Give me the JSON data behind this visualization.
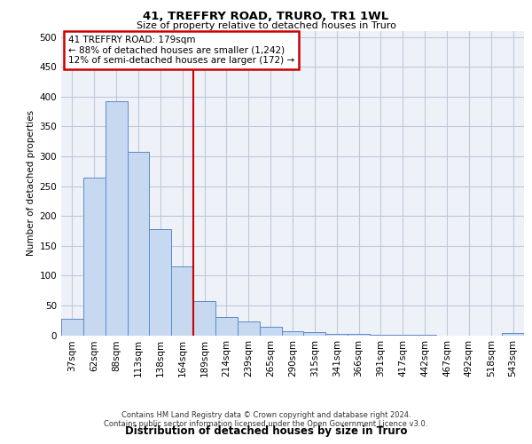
{
  "title": "41, TREFFRY ROAD, TRURO, TR1 1WL",
  "subtitle": "Size of property relative to detached houses in Truro",
  "xlabel": "Distribution of detached houses by size in Truro",
  "ylabel": "Number of detached properties",
  "footer_line1": "Contains HM Land Registry data © Crown copyright and database right 2024.",
  "footer_line2": "Contains public sector information licensed under the Open Government Licence v3.0.",
  "bar_labels": [
    "37sqm",
    "62sqm",
    "88sqm",
    "113sqm",
    "138sqm",
    "164sqm",
    "189sqm",
    "214sqm",
    "239sqm",
    "265sqm",
    "290sqm",
    "315sqm",
    "341sqm",
    "366sqm",
    "391sqm",
    "417sqm",
    "442sqm",
    "467sqm",
    "492sqm",
    "518sqm",
    "543sqm"
  ],
  "bar_values": [
    27,
    265,
    393,
    307,
    178,
    115,
    57,
    31,
    23,
    14,
    7,
    5,
    2,
    2,
    1,
    1,
    1,
    0,
    0,
    0,
    3
  ],
  "bar_color": "#c6d9f0",
  "bar_edgecolor": "#5a8ac6",
  "grid_color": "#c0c8d8",
  "bg_color": "#eef2f8",
  "vline_x": 5.5,
  "vline_color": "#cc0000",
  "annotation_line1": "41 TREFFRY ROAD: 179sqm",
  "annotation_line2": "← 88% of detached houses are smaller (1,242)",
  "annotation_line3": "12% of semi-detached houses are larger (172) →",
  "annotation_box_edgecolor": "#cc0000",
  "ylim": [
    0,
    510
  ],
  "yticks": [
    0,
    50,
    100,
    150,
    200,
    250,
    300,
    350,
    400,
    450,
    500
  ]
}
